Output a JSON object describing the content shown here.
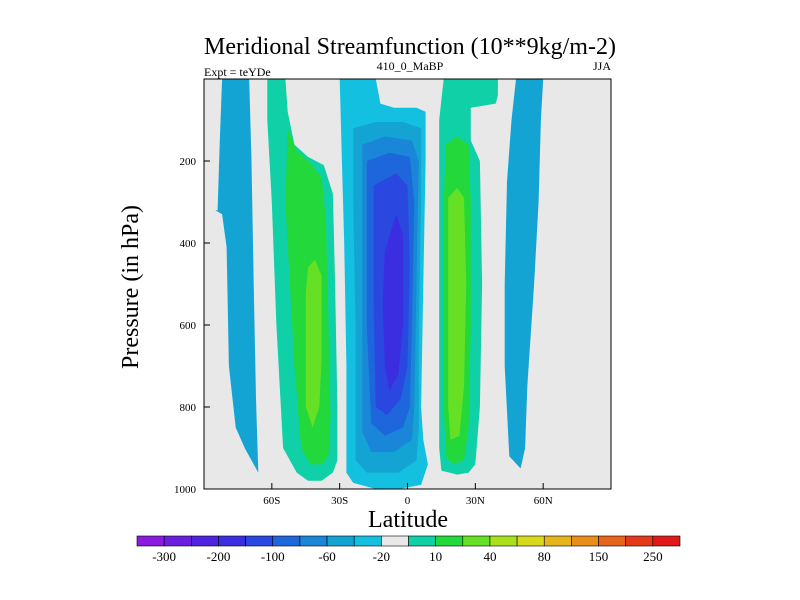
{
  "chart_data": {
    "type": "contour",
    "title": "Meridional Streamfunction (10**9kg/m-2)",
    "left_string": "Expt = teYDe",
    "center_string": "410_0_MaBP",
    "right_string": "JJA",
    "xlabel": "Latitude",
    "ylabel": "Pressure (in hPa)",
    "xlim": [
      -90,
      90
    ],
    "ylim": [
      1000,
      0
    ],
    "x_ticks": [
      {
        "value": -60,
        "label": "60S"
      },
      {
        "value": -30,
        "label": "30S"
      },
      {
        "value": 0,
        "label": "0"
      },
      {
        "value": 30,
        "label": "30N"
      },
      {
        "value": 60,
        "label": "60N"
      }
    ],
    "y_ticks": [
      {
        "value": 200,
        "label": "200"
      },
      {
        "value": 400,
        "label": "400"
      },
      {
        "value": 600,
        "label": "600"
      },
      {
        "value": 800,
        "label": "800"
      },
      {
        "value": 1000,
        "label": "1000"
      }
    ],
    "background_color": "#e8e8e8",
    "colorbar": {
      "colors": [
        "#8a1ae0",
        "#6c1ee0",
        "#4f22e0",
        "#3a2ee0",
        "#2a48e0",
        "#1e66dc",
        "#1a86d8",
        "#14a4d4",
        "#14c0e0",
        "#e8e8e8",
        "#10d0a8",
        "#22d83a",
        "#66e024",
        "#a8e01c",
        "#d8d81c",
        "#e6b41c",
        "#e88e1c",
        "#e6641c",
        "#e43a1c",
        "#e01a1a"
      ],
      "labels": [
        {
          "boundary": 1,
          "text": "-300"
        },
        {
          "boundary": 3,
          "text": "-200"
        },
        {
          "boundary": 5,
          "text": "-100"
        },
        {
          "boundary": 7,
          "text": "-60"
        },
        {
          "boundary": 9,
          "text": "-20"
        },
        {
          "boundary": 11,
          "text": "10"
        },
        {
          "boundary": 13,
          "text": "40"
        },
        {
          "boundary": 15,
          "text": "80"
        },
        {
          "boundary": 17,
          "text": "150"
        },
        {
          "boundary": 19,
          "text": "250"
        }
      ]
    },
    "cells": [
      {
        "name": "sh-polar-cell",
        "sign": "negative",
        "min_level": 1,
        "outline": [
          [
            -85,
            320
          ],
          [
            -82,
            330
          ],
          [
            -80,
            410
          ],
          [
            -79,
            700
          ],
          [
            -76,
            850
          ],
          [
            -72,
            900
          ],
          [
            -68,
            940
          ],
          [
            -66,
            960
          ],
          [
            -67,
            780
          ],
          [
            -68,
            500
          ],
          [
            -69,
            200
          ],
          [
            -70,
            0
          ],
          [
            -82,
            0
          ],
          [
            -83,
            150
          ],
          [
            -84,
            320
          ]
        ]
      },
      {
        "name": "sh-ferrel-cell",
        "sign": "positive",
        "levels": [
          {
            "level": 0,
            "outline": [
              [
                -62,
                0
              ],
              [
                -54,
                0
              ],
              [
                -53,
                80
              ],
              [
                -50,
                160
              ],
              [
                -44,
                190
              ],
              [
                -37,
                210
              ],
              [
                -33,
                280
              ],
              [
                -32,
                500
              ],
              [
                -31,
                800
              ],
              [
                -31,
                930
              ],
              [
                -33,
                960
              ],
              [
                -38,
                980
              ],
              [
                -44,
                980
              ],
              [
                -49,
                960
              ],
              [
                -55,
                900
              ],
              [
                -58,
                600
              ],
              [
                -60,
                300
              ],
              [
                -62,
                100
              ]
            ]
          },
          {
            "level": 1,
            "outline": [
              [
                -53,
                120
              ],
              [
                -49,
                175
              ],
              [
                -43,
                205
              ],
              [
                -38,
                240
              ],
              [
                -36,
                350
              ],
              [
                -35,
                600
              ],
              [
                -34,
                820
              ],
              [
                -35,
                920
              ],
              [
                -38,
                940
              ],
              [
                -43,
                940
              ],
              [
                -47,
                900
              ],
              [
                -50,
                700
              ],
              [
                -52,
                500
              ],
              [
                -54,
                300
              ]
            ]
          },
          {
            "level": 2,
            "outline": [
              [
                -44,
                460
              ],
              [
                -41,
                440
              ],
              [
                -38,
                480
              ],
              [
                -38,
                680
              ],
              [
                -39,
                800
              ],
              [
                -42,
                850
              ],
              [
                -45,
                800
              ],
              [
                -45,
                650
              ],
              [
                -45,
                520
              ]
            ]
          }
        ]
      },
      {
        "name": "hadley-winter-cell",
        "sign": "negative",
        "levels": [
          {
            "level": 0,
            "outline": [
              [
                -30,
                0
              ],
              [
                -14,
                0
              ],
              [
                -12,
                60
              ],
              [
                -6,
                70
              ],
              [
                4,
                70
              ],
              [
                8,
                80
              ],
              [
                8,
                200
              ],
              [
                7,
                500
              ],
              [
                6,
                800
              ],
              [
                7,
                880
              ],
              [
                9,
                940
              ],
              [
                6,
                990
              ],
              [
                -4,
                1000
              ],
              [
                -14,
                1000
              ],
              [
                -24,
                985
              ],
              [
                -27,
                960
              ],
              [
                -27,
                700
              ],
              [
                -28,
                400
              ],
              [
                -29,
                200
              ]
            ]
          },
          {
            "level": 1,
            "outline": [
              [
                -24,
                120
              ],
              [
                -14,
                105
              ],
              [
                -2,
                105
              ],
              [
                6,
                120
              ],
              [
                6,
                300
              ],
              [
                5,
                600
              ],
              [
                5,
                850
              ],
              [
                4,
                930
              ],
              [
                -4,
                960
              ],
              [
                -18,
                960
              ],
              [
                -23,
                930
              ],
              [
                -23,
                600
              ],
              [
                -24,
                300
              ]
            ]
          },
          {
            "level": 2,
            "outline": [
              [
                -20,
                160
              ],
              [
                -10,
                140
              ],
              [
                2,
                150
              ],
              [
                5,
                200
              ],
              [
                4,
                500
              ],
              [
                3,
                800
              ],
              [
                2,
                880
              ],
              [
                -6,
                910
              ],
              [
                -16,
                910
              ],
              [
                -20,
                860
              ],
              [
                -20,
                500
              ]
            ]
          },
          {
            "level": 3,
            "outline": [
              [
                -18,
                200
              ],
              [
                -8,
                180
              ],
              [
                1,
                190
              ],
              [
                3,
                300
              ],
              [
                2,
                600
              ],
              [
                1,
                800
              ],
              [
                -2,
                850
              ],
              [
                -10,
                870
              ],
              [
                -16,
                840
              ],
              [
                -18,
                600
              ],
              [
                -18,
                350
              ]
            ]
          },
          {
            "level": 4,
            "outline": [
              [
                -15,
                260
              ],
              [
                -5,
                230
              ],
              [
                0,
                260
              ],
              [
                1,
                450
              ],
              [
                0,
                700
              ],
              [
                -3,
                780
              ],
              [
                -9,
                820
              ],
              [
                -14,
                800
              ],
              [
                -15,
                550
              ]
            ]
          },
          {
            "level": 5,
            "outline": [
              [
                -10,
                420
              ],
              [
                -5,
                330
              ],
              [
                -2,
                380
              ],
              [
                -2,
                600
              ],
              [
                -4,
                720
              ],
              [
                -8,
                760
              ],
              [
                -10,
                700
              ],
              [
                -11,
                550
              ]
            ]
          }
        ]
      },
      {
        "name": "hadley-summer-cell",
        "sign": "positive",
        "levels": [
          {
            "level": 0,
            "outline": [
              [
                16,
                0
              ],
              [
                40,
                0
              ],
              [
                40,
                40
              ],
              [
                39,
                60
              ],
              [
                28,
                70
              ],
              [
                28,
                150
              ],
              [
                32,
                200
              ],
              [
                33,
                500
              ],
              [
                32,
                800
              ],
              [
                30,
                940
              ],
              [
                27,
                960
              ],
              [
                22,
                965
              ],
              [
                15,
                955
              ],
              [
                14,
                900
              ],
              [
                14,
                600
              ],
              [
                14,
                300
              ],
              [
                14,
                100
              ],
              [
                15,
                50
              ]
            ]
          },
          {
            "level": 1,
            "outline": [
              [
                17,
                160
              ],
              [
                22,
                140
              ],
              [
                27,
                160
              ],
              [
                28,
                300
              ],
              [
                28,
                600
              ],
              [
                27,
                850
              ],
              [
                25,
                930
              ],
              [
                20,
                940
              ],
              [
                17,
                920
              ],
              [
                16,
                800
              ],
              [
                16,
                500
              ],
              [
                16,
                300
              ]
            ]
          },
          {
            "level": 2,
            "outline": [
              [
                18,
                290
              ],
              [
                22,
                265
              ],
              [
                25,
                290
              ],
              [
                26,
                500
              ],
              [
                25,
                750
              ],
              [
                23,
                870
              ],
              [
                19,
                880
              ],
              [
                18,
                800
              ],
              [
                18,
                500
              ]
            ]
          }
        ]
      },
      {
        "name": "nh-ferrel-cell",
        "sign": "negative",
        "min_level": 1,
        "outline": [
          [
            48,
            0
          ],
          [
            60,
            0
          ],
          [
            59,
            100
          ],
          [
            58,
            300
          ],
          [
            56,
            500
          ],
          [
            53,
            750
          ],
          [
            52,
            900
          ],
          [
            50,
            950
          ],
          [
            45,
            920
          ],
          [
            43,
            700
          ],
          [
            43,
            500
          ],
          [
            44,
            250
          ],
          [
            46,
            100
          ]
        ]
      }
    ]
  }
}
